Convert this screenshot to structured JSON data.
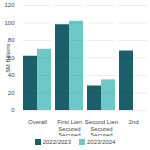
{
  "chart_data": {
    "type": "bar",
    "categories": [
      "Overall",
      "First Lien\nSecured\nSecured",
      "Second Lien\nSecured\nSecured",
      "2nd"
    ],
    "series": [
      {
        "name": "2022/2023",
        "color": "#1a5f6a",
        "values": [
          62,
          98,
          28,
          68
        ]
      },
      {
        "name": "2023/2024",
        "color": "#6dc8c8",
        "values": [
          70,
          102,
          35,
          0
        ]
      }
    ],
    "ylabel": "$M Billions",
    "ylim": [
      0,
      120
    ],
    "yticks": [
      0,
      20,
      40,
      60,
      80,
      100,
      120
    ],
    "grid": true,
    "legend": "bottom"
  }
}
